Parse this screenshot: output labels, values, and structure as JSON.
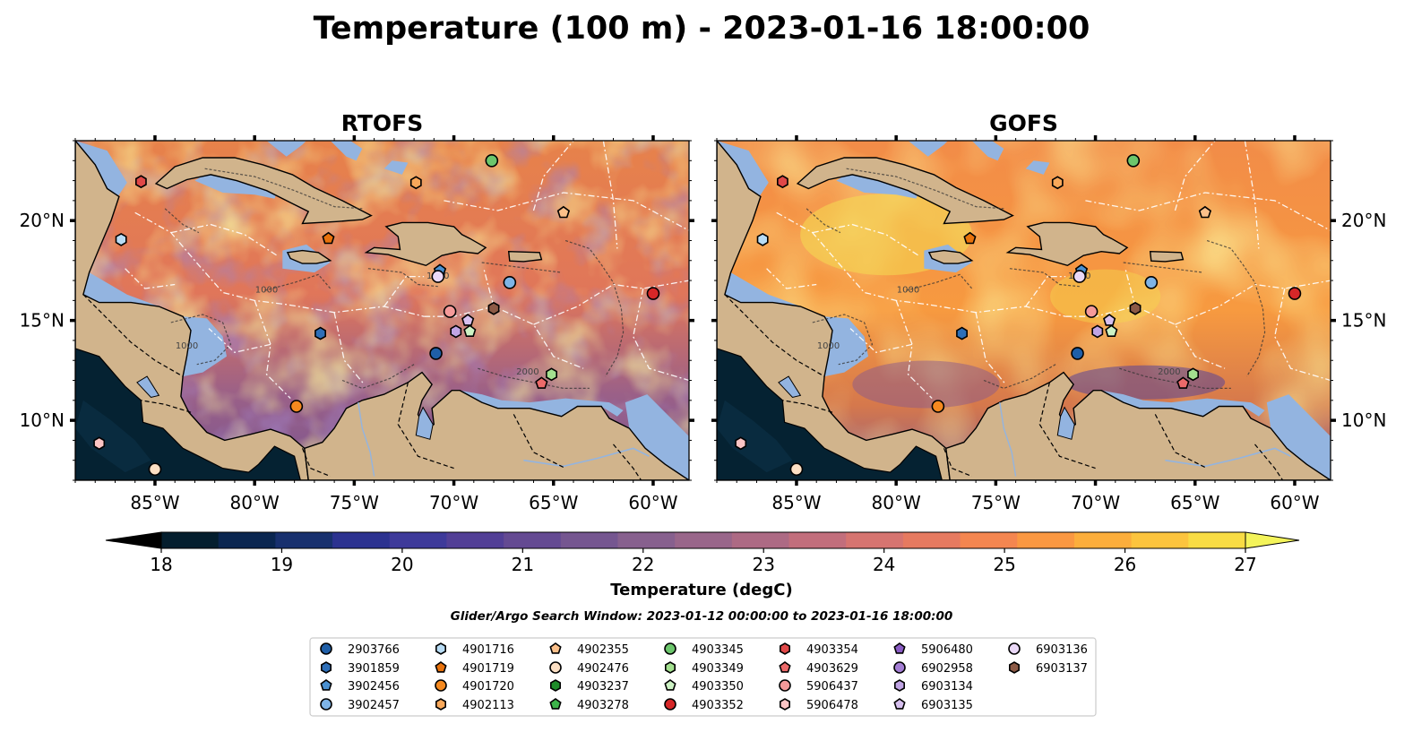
{
  "title": "Temperature (100 m) - 2023-01-16 18:00:00",
  "panels": [
    {
      "title": "RTOFS",
      "scheme": "rtofs"
    },
    {
      "title": "GOFS",
      "scheme": "gofs"
    }
  ],
  "axes": {
    "lon_range": [
      -89,
      -58.2
    ],
    "lat_range": [
      7,
      24
    ],
    "lon_ticks": [
      {
        "value": -85,
        "label": "85°W"
      },
      {
        "value": -80,
        "label": "80°W"
      },
      {
        "value": -75,
        "label": "75°W"
      },
      {
        "value": -70,
        "label": "70°W"
      },
      {
        "value": -65,
        "label": "65°W"
      },
      {
        "value": -60,
        "label": "60°W"
      }
    ],
    "lat_ticks": [
      {
        "value": 20,
        "label": "20°N"
      },
      {
        "value": 15,
        "label": "15°N"
      },
      {
        "value": 10,
        "label": "10°N"
      }
    ]
  },
  "colorbar": {
    "label": "Temperature (degC)",
    "min": 18,
    "max": 27,
    "step": 0.5,
    "ticks": [
      {
        "value": 18,
        "label": "18"
      },
      {
        "value": 19,
        "label": "19"
      },
      {
        "value": 20,
        "label": "20"
      },
      {
        "value": 21,
        "label": "21"
      },
      {
        "value": 22,
        "label": "22"
      },
      {
        "value": 23,
        "label": "23"
      },
      {
        "value": 24,
        "label": "24"
      },
      {
        "value": 25,
        "label": "25"
      },
      {
        "value": 26,
        "label": "26"
      },
      {
        "value": 27,
        "label": "27"
      }
    ],
    "colors": [
      "#041e2e",
      "#0a2650",
      "#18306e",
      "#2c3290",
      "#3e3a9a",
      "#523f96",
      "#644a92",
      "#755690",
      "#87608e",
      "#99668a",
      "#ad6a84",
      "#c26e7c",
      "#d67470",
      "#e67a60",
      "#f48650",
      "#fa9842",
      "#fcae3c",
      "#fcc43e",
      "#f8dc44"
    ],
    "extend_low": "#000000",
    "extend_high": "#f4f45a"
  },
  "search_window": "Glider/Argo Search Window: 2023-01-12 00:00:00 to 2023-01-16 18:00:00",
  "contour_labels": [
    "1000",
    "1000",
    "1000",
    "2000"
  ],
  "legend_items": [
    {
      "id": "2903766",
      "marker": "circle",
      "color": "#1f5fa8"
    },
    {
      "id": "3901859",
      "marker": "hexagon",
      "color": "#2e6fb8"
    },
    {
      "id": "3902456",
      "marker": "pentagon",
      "color": "#4a90d0"
    },
    {
      "id": "3902457",
      "marker": "circle",
      "color": "#7fb4e6"
    },
    {
      "id": "4901716",
      "marker": "hexagon",
      "color": "#b8dcf5"
    },
    {
      "id": "4901719",
      "marker": "pentagon",
      "color": "#e8720c"
    },
    {
      "id": "4901720",
      "marker": "circle",
      "color": "#f5891f"
    },
    {
      "id": "4902113",
      "marker": "hexagon",
      "color": "#f9a85a"
    },
    {
      "id": "4902355",
      "marker": "pentagon",
      "color": "#fcc08a"
    },
    {
      "id": "4902476",
      "marker": "circle",
      "color": "#fde0c4"
    },
    {
      "id": "4903237",
      "marker": "hexagon",
      "color": "#1f8c2a"
    },
    {
      "id": "4903278",
      "marker": "pentagon",
      "color": "#3db34a"
    },
    {
      "id": "4903345",
      "marker": "circle",
      "color": "#6cc66c"
    },
    {
      "id": "4903349",
      "marker": "hexagon",
      "color": "#a3e08f"
    },
    {
      "id": "4903350",
      "marker": "pentagon",
      "color": "#cdf2c4"
    },
    {
      "id": "4903352",
      "marker": "circle",
      "color": "#d62728"
    },
    {
      "id": "4903354",
      "marker": "hexagon",
      "color": "#e04848"
    },
    {
      "id": "4903629",
      "marker": "pentagon",
      "color": "#ec6a6a"
    },
    {
      "id": "5906437",
      "marker": "circle",
      "color": "#f59a9a"
    },
    {
      "id": "5906478",
      "marker": "hexagon",
      "color": "#fbc4c4"
    },
    {
      "id": "5906480",
      "marker": "pentagon",
      "color": "#8a5cc4"
    },
    {
      "id": "6902958",
      "marker": "circle",
      "color": "#a47ed4"
    },
    {
      "id": "6903134",
      "marker": "hexagon",
      "color": "#c0a4e4"
    },
    {
      "id": "6903135",
      "marker": "pentagon",
      "color": "#d7c0ef"
    },
    {
      "id": "6903136",
      "marker": "circle",
      "color": "#ead8f7"
    },
    {
      "id": "6903137",
      "marker": "hexagon",
      "color": "#8c5a46"
    }
  ],
  "floats": [
    {
      "id": "4901719",
      "lon": -76.3,
      "lat": 19.1,
      "marker": "pentagon",
      "color": "#e8720c"
    },
    {
      "id": "4903354",
      "lon": -85.7,
      "lat": 21.95,
      "marker": "hexagon",
      "color": "#e04848"
    },
    {
      "id": "4902113",
      "lon": -71.9,
      "lat": 21.9,
      "marker": "hexagon",
      "color": "#f9a85a"
    },
    {
      "id": "4903345",
      "lon": -68.1,
      "lat": 23.0,
      "marker": "circle",
      "color": "#6cc66c"
    },
    {
      "id": "4902355",
      "lon": -64.5,
      "lat": 20.4,
      "marker": "pentagon",
      "color": "#fcc08a"
    },
    {
      "id": "4901716",
      "lon": -86.7,
      "lat": 19.05,
      "marker": "hexagon",
      "color": "#b8dcf5"
    },
    {
      "id": "3902456",
      "lon": -70.7,
      "lat": 17.5,
      "marker": "pentagon",
      "color": "#4a90d0"
    },
    {
      "id": "6903136",
      "lon": -70.8,
      "lat": 17.2,
      "marker": "circle",
      "color": "#ead8f7"
    },
    {
      "id": "3902457",
      "lon": -67.2,
      "lat": 16.9,
      "marker": "circle",
      "color": "#7fb4e6"
    },
    {
      "id": "4903352",
      "lon": -60.0,
      "lat": 16.35,
      "marker": "circle",
      "color": "#d62728"
    },
    {
      "id": "6903137",
      "lon": -68.0,
      "lat": 15.6,
      "marker": "hexagon",
      "color": "#8c5a46"
    },
    {
      "id": "5906437",
      "lon": -70.2,
      "lat": 15.45,
      "marker": "circle",
      "color": "#f59a9a"
    },
    {
      "id": "6903135",
      "lon": -69.3,
      "lat": 15.0,
      "marker": "pentagon",
      "color": "#d7c0ef"
    },
    {
      "id": "6903134",
      "lon": -69.9,
      "lat": 14.45,
      "marker": "hexagon",
      "color": "#c0a4e4"
    },
    {
      "id": "4903350",
      "lon": -69.2,
      "lat": 14.45,
      "marker": "pentagon",
      "color": "#cdf2c4"
    },
    {
      "id": "3901859",
      "lon": -76.7,
      "lat": 14.35,
      "marker": "hexagon",
      "color": "#2e6fb8"
    },
    {
      "id": "2903766",
      "lon": -70.9,
      "lat": 13.35,
      "marker": "circle",
      "color": "#1f5fa8"
    },
    {
      "id": "4903349",
      "lon": -65.1,
      "lat": 12.3,
      "marker": "hexagon",
      "color": "#a3e08f"
    },
    {
      "id": "4903629",
      "lon": -65.6,
      "lat": 11.85,
      "marker": "pentagon",
      "color": "#ec6a6a"
    },
    {
      "id": "4901720",
      "lon": -77.9,
      "lat": 10.7,
      "marker": "circle",
      "color": "#f5891f"
    },
    {
      "id": "5906478",
      "lon": -87.8,
      "lat": 8.85,
      "marker": "hexagon",
      "color": "#fbc4c4"
    },
    {
      "id": "4902476",
      "lon": -85.0,
      "lat": 7.55,
      "marker": "circle",
      "color": "#fde0c4"
    }
  ]
}
